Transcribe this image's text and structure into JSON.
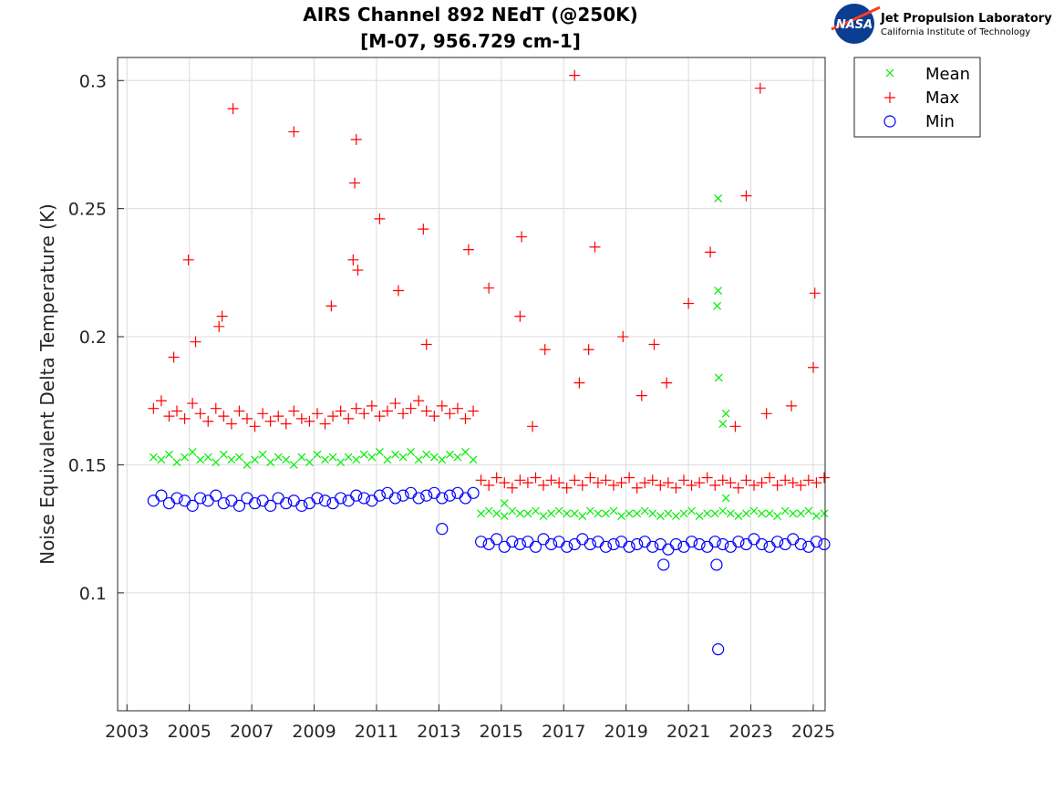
{
  "logo": {
    "name": "NASA",
    "org": "Jet Propulsion Laboratory",
    "sub": "California Institute of Technology"
  },
  "chart_data": {
    "type": "scatter",
    "title_line1": "AIRS Channel 892 NEdT (@250K)",
    "title_line2": "[M-07, 956.729 cm-1]",
    "xlabel": "",
    "ylabel": "Noise Equivalent Delta Temperature (K)",
    "xlim": [
      2002.7,
      2025.38
    ],
    "ylim": [
      0.054,
      0.309
    ],
    "xticks": [
      2003,
      2005,
      2007,
      2009,
      2011,
      2013,
      2015,
      2017,
      2019,
      2021,
      2023,
      2025
    ],
    "yticks": [
      0.1,
      0.15,
      0.2,
      0.25,
      0.3
    ],
    "ytick_labels": [
      "0.1",
      "0.15",
      "0.2",
      "0.25",
      "0.3"
    ],
    "grid": true,
    "legend_position": "outside-top-right",
    "x": [
      2003.85,
      2004.1,
      2004.35,
      2004.6,
      2004.85,
      2005.1,
      2005.35,
      2005.6,
      2005.85,
      2006.1,
      2006.35,
      2006.6,
      2006.85,
      2007.1,
      2007.35,
      2007.6,
      2007.85,
      2008.1,
      2008.35,
      2008.6,
      2008.85,
      2009.1,
      2009.35,
      2009.6,
      2009.85,
      2010.1,
      2010.35,
      2010.6,
      2010.85,
      2011.1,
      2011.35,
      2011.6,
      2011.85,
      2012.1,
      2012.35,
      2012.6,
      2012.85,
      2013.1,
      2013.35,
      2013.6,
      2013.85,
      2014.1,
      2014.35,
      2014.6,
      2014.85,
      2015.1,
      2015.35,
      2015.6,
      2015.85,
      2016.1,
      2016.35,
      2016.6,
      2016.85,
      2017.1,
      2017.35,
      2017.6,
      2017.85,
      2018.1,
      2018.35,
      2018.6,
      2018.85,
      2019.1,
      2019.35,
      2019.6,
      2019.85,
      2020.1,
      2020.35,
      2020.6,
      2020.85,
      2021.1,
      2021.35,
      2021.6,
      2021.85,
      2022.1,
      2022.35,
      2022.6,
      2022.85,
      2023.1,
      2023.35,
      2023.6,
      2023.85,
      2024.1,
      2024.35,
      2024.6,
      2024.85,
      2025.1,
      2025.35
    ],
    "series": [
      {
        "name": "Mean",
        "marker": "x",
        "color": "#00ee00",
        "values": [
          0.153,
          0.152,
          0.154,
          0.151,
          0.153,
          0.155,
          0.152,
          0.153,
          0.151,
          0.154,
          0.152,
          0.153,
          0.15,
          0.152,
          0.154,
          0.151,
          0.153,
          0.152,
          0.15,
          0.153,
          0.151,
          0.154,
          0.152,
          0.153,
          0.151,
          0.153,
          0.152,
          0.154,
          0.153,
          0.155,
          0.152,
          0.154,
          0.153,
          0.155,
          0.152,
          0.154,
          0.153,
          0.152,
          0.154,
          0.153,
          0.155,
          0.152,
          0.131,
          0.132,
          0.131,
          0.13,
          0.132,
          0.131,
          0.131,
          0.132,
          0.13,
          0.131,
          0.132,
          0.131,
          0.131,
          0.13,
          0.132,
          0.131,
          0.131,
          0.132,
          0.13,
          0.131,
          0.131,
          0.132,
          0.131,
          0.13,
          0.131,
          0.13,
          0.131,
          0.132,
          0.13,
          0.131,
          0.131,
          0.132,
          0.131,
          0.13,
          0.131,
          0.132,
          0.131,
          0.131,
          0.13,
          0.132,
          0.131,
          0.131,
          0.132,
          0.13,
          0.131
        ],
        "outliers": [
          [
            2021.95,
            0.254
          ],
          [
            2021.95,
            0.218
          ],
          [
            2021.92,
            0.212
          ],
          [
            2021.97,
            0.184
          ],
          [
            2022.2,
            0.17
          ],
          [
            2022.1,
            0.166
          ],
          [
            2022.2,
            0.137
          ],
          [
            2015.1,
            0.135
          ]
        ]
      },
      {
        "name": "Max",
        "marker": "+",
        "color": "#ff0000",
        "values": [
          0.172,
          0.175,
          0.169,
          0.171,
          0.168,
          0.174,
          0.17,
          0.167,
          0.172,
          0.169,
          0.166,
          0.171,
          0.168,
          0.165,
          0.17,
          0.167,
          0.169,
          0.166,
          0.171,
          0.168,
          0.167,
          0.17,
          0.166,
          0.169,
          0.171,
          0.168,
          0.172,
          0.17,
          0.173,
          0.169,
          0.171,
          0.174,
          0.17,
          0.172,
          0.175,
          0.171,
          0.169,
          0.173,
          0.17,
          0.172,
          0.168,
          0.171,
          0.144,
          0.142,
          0.145,
          0.143,
          0.141,
          0.144,
          0.143,
          0.145,
          0.142,
          0.144,
          0.143,
          0.141,
          0.144,
          0.142,
          0.145,
          0.143,
          0.144,
          0.142,
          0.143,
          0.145,
          0.141,
          0.143,
          0.144,
          0.142,
          0.143,
          0.141,
          0.144,
          0.142,
          0.143,
          0.145,
          0.142,
          0.144,
          0.143,
          0.141,
          0.144,
          0.142,
          0.143,
          0.145,
          0.142,
          0.144,
          0.143,
          0.142,
          0.144,
          0.143,
          0.145
        ],
        "outliers": [
          [
            2004.97,
            0.23
          ],
          [
            2006.4,
            0.289
          ],
          [
            2008.35,
            0.28
          ],
          [
            2010.3,
            0.26
          ],
          [
            2010.35,
            0.277
          ],
          [
            2010.25,
            0.23
          ],
          [
            2010.4,
            0.226
          ],
          [
            2011.1,
            0.246
          ],
          [
            2012.5,
            0.242
          ],
          [
            2013.95,
            0.234
          ],
          [
            2014.6,
            0.219
          ],
          [
            2015.65,
            0.239
          ],
          [
            2017.35,
            0.302
          ],
          [
            2018.0,
            0.235
          ],
          [
            2021.7,
            0.233
          ],
          [
            2022.85,
            0.255
          ],
          [
            2023.3,
            0.297
          ],
          [
            2025.05,
            0.217
          ],
          [
            2009.55,
            0.212
          ],
          [
            2011.7,
            0.218
          ],
          [
            2006.05,
            0.208
          ],
          [
            2005.95,
            0.204
          ],
          [
            2015.6,
            0.208
          ],
          [
            2021.0,
            0.213
          ],
          [
            2004.5,
            0.192
          ],
          [
            2005.2,
            0.198
          ],
          [
            2025.0,
            0.188
          ],
          [
            2018.9,
            0.2
          ],
          [
            2019.9,
            0.197
          ],
          [
            2016.4,
            0.195
          ],
          [
            2017.8,
            0.195
          ],
          [
            2012.6,
            0.197
          ],
          [
            2016.0,
            0.165
          ],
          [
            2017.5,
            0.182
          ],
          [
            2019.5,
            0.177
          ],
          [
            2020.3,
            0.182
          ],
          [
            2022.5,
            0.165
          ],
          [
            2023.5,
            0.17
          ],
          [
            2024.3,
            0.173
          ]
        ]
      },
      {
        "name": "Min",
        "marker": "o",
        "color": "#0000ff",
        "values": [
          0.136,
          0.138,
          0.135,
          0.137,
          0.136,
          0.134,
          0.137,
          0.136,
          0.138,
          0.135,
          0.136,
          0.134,
          0.137,
          0.135,
          0.136,
          0.134,
          0.137,
          0.135,
          0.136,
          0.134,
          0.135,
          0.137,
          0.136,
          0.135,
          0.137,
          0.136,
          0.138,
          0.137,
          0.136,
          0.138,
          0.139,
          0.137,
          0.138,
          0.139,
          0.137,
          0.138,
          0.139,
          0.137,
          0.138,
          0.139,
          0.137,
          0.139,
          0.12,
          0.119,
          0.121,
          0.118,
          0.12,
          0.119,
          0.12,
          0.118,
          0.121,
          0.119,
          0.12,
          0.118,
          0.119,
          0.121,
          0.119,
          0.12,
          0.118,
          0.119,
          0.12,
          0.118,
          0.119,
          0.12,
          0.118,
          0.119,
          0.117,
          0.119,
          0.118,
          0.12,
          0.119,
          0.118,
          0.12,
          0.119,
          0.118,
          0.12,
          0.119,
          0.121,
          0.119,
          0.118,
          0.12,
          0.119,
          0.121,
          0.119,
          0.118,
          0.12,
          0.119
        ],
        "outliers": [
          [
            2021.95,
            0.078
          ],
          [
            2021.9,
            0.111
          ],
          [
            2020.2,
            0.111
          ],
          [
            2013.1,
            0.125
          ]
        ]
      }
    ]
  }
}
